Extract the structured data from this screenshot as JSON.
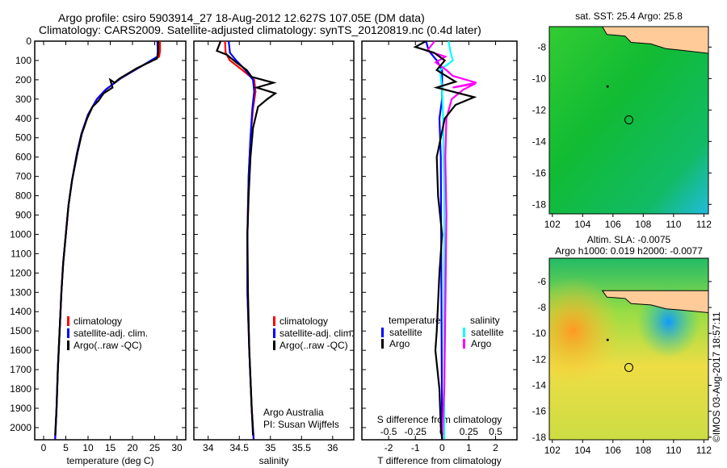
{
  "title_line1": "Argo profile: csiro 5903914_27 18-Aug-2012 12.627S 107.05E (DM data)",
  "title_line2": "Climatology: CARS2009. Satellite-adjusted climatology: synTS_20120819.nc (0.4d later)",
  "side_label": "©IMOS 03-Aug-2017 18:57:11",
  "colors": {
    "climatology": "#ff0000",
    "satellite": "#0000ff",
    "argo": "#000000",
    "sal_satellite": "#00ffff",
    "sal_argo": "#ff00ff"
  },
  "chart_data": [
    {
      "type": "line",
      "id": "temp",
      "xlabel": "temperature (deg C)",
      "ylabel": "",
      "xlim": [
        -2,
        32
      ],
      "ylim": [
        2063,
        0
      ],
      "xticks": [
        0,
        5,
        10,
        15,
        20,
        25,
        30
      ],
      "yticks": [
        0,
        100,
        200,
        300,
        400,
        500,
        600,
        700,
        800,
        900,
        1000,
        1100,
        1200,
        1300,
        1400,
        1500,
        1600,
        1700,
        1800,
        1900,
        2000
      ],
      "legend": [
        "climatology",
        "satellite-adj. clim.",
        "Argo(..raw -QC)"
      ],
      "series": [
        {
          "name": "climatology",
          "color": "#ff0000",
          "points": [
            [
              26.2,
              0
            ],
            [
              26.2,
              50
            ],
            [
              26,
              80
            ],
            [
              22,
              130
            ],
            [
              17.5,
              190
            ],
            [
              14,
              250
            ],
            [
              12,
              300
            ],
            [
              10,
              380
            ],
            [
              8.5,
              480
            ],
            [
              7.5,
              580
            ],
            [
              6.4,
              720
            ],
            [
              5.6,
              850
            ],
            [
              5,
              1000
            ],
            [
              4.4,
              1150
            ],
            [
              4,
              1300
            ],
            [
              3.6,
              1500
            ],
            [
              3.2,
              1700
            ],
            [
              2.9,
              1900
            ],
            [
              2.6,
              2060
            ]
          ]
        },
        {
          "name": "satellite-adj. clim.",
          "color": "#0000ff",
          "points": [
            [
              25.6,
              0
            ],
            [
              25.7,
              50
            ],
            [
              25.6,
              80
            ],
            [
              22,
              130
            ],
            [
              17.5,
              190
            ],
            [
              14,
              250
            ],
            [
              12,
              300
            ],
            [
              10,
              380
            ],
            [
              8.5,
              480
            ],
            [
              7.5,
              580
            ],
            [
              6.4,
              720
            ],
            [
              5.6,
              850
            ],
            [
              5,
              1000
            ],
            [
              4.4,
              1150
            ],
            [
              4,
              1300
            ],
            [
              3.6,
              1500
            ],
            [
              3.2,
              1700
            ],
            [
              2.9,
              1900
            ],
            [
              2.6,
              2060
            ]
          ]
        },
        {
          "name": "Argo(..raw -QC)",
          "color": "#000000",
          "points": [
            [
              25.8,
              0
            ],
            [
              25.8,
              60
            ],
            [
              25.5,
              90
            ],
            [
              21,
              140
            ],
            [
              17,
              195
            ],
            [
              16,
              215
            ],
            [
              15,
              200
            ],
            [
              15.5,
              240
            ],
            [
              13.5,
              270
            ],
            [
              12.3,
              310
            ],
            [
              11,
              340
            ],
            [
              9.8,
              400
            ],
            [
              8.6,
              480
            ],
            [
              7.6,
              580
            ],
            [
              6.4,
              720
            ],
            [
              5.6,
              850
            ],
            [
              5,
              1000
            ],
            [
              4.4,
              1150
            ],
            [
              4,
              1300
            ],
            [
              3.6,
              1500
            ],
            [
              3.2,
              1700
            ],
            [
              2.9,
              1900
            ],
            [
              2.6,
              2040
            ]
          ]
        }
      ]
    },
    {
      "type": "line",
      "id": "sal",
      "xlabel": "salinity",
      "xlim": [
        33.77,
        36.34
      ],
      "ylim": [
        2063,
        0
      ],
      "xticks": [
        34,
        34.5,
        35,
        35.5,
        36
      ],
      "xticklabels": [
        "34",
        "34.5",
        "35",
        "35.5",
        "36"
      ],
      "legend": [
        "climatology",
        "satellite-adj. clim.",
        "Argo(..raw -QC)"
      ],
      "annotation": [
        "Argo Australia",
        "PI: Susan Wijffels"
      ],
      "series": [
        {
          "name": "climatology",
          "color": "#ff0000",
          "points": [
            [
              34.27,
              0
            ],
            [
              34.28,
              60
            ],
            [
              34.35,
              100
            ],
            [
              34.55,
              150
            ],
            [
              34.74,
              200
            ],
            [
              34.76,
              260
            ],
            [
              34.72,
              350
            ],
            [
              34.68,
              500
            ],
            [
              34.65,
              700
            ],
            [
              34.63,
              1000
            ],
            [
              34.63,
              1300
            ],
            [
              34.66,
              1600
            ],
            [
              34.7,
              1900
            ],
            [
              34.73,
              2060
            ]
          ]
        },
        {
          "name": "satellite-adj. clim.",
          "color": "#0000ff",
          "points": [
            [
              34.33,
              0
            ],
            [
              34.35,
              60
            ],
            [
              34.45,
              100
            ],
            [
              34.6,
              150
            ],
            [
              34.72,
              200
            ],
            [
              34.74,
              260
            ],
            [
              34.71,
              350
            ],
            [
              34.68,
              500
            ],
            [
              34.65,
              700
            ],
            [
              34.63,
              1000
            ],
            [
              34.63,
              1300
            ],
            [
              34.66,
              1600
            ],
            [
              34.7,
              1900
            ],
            [
              34.73,
              2060
            ]
          ]
        },
        {
          "name": "Argo(..raw -QC)",
          "color": "#000000",
          "points": [
            [
              34.2,
              0
            ],
            [
              34.14,
              50
            ],
            [
              34.3,
              70
            ],
            [
              34.45,
              110
            ],
            [
              34.62,
              150
            ],
            [
              34.7,
              185
            ],
            [
              35.05,
              215
            ],
            [
              34.78,
              240
            ],
            [
              35.08,
              270
            ],
            [
              34.95,
              300
            ],
            [
              34.8,
              340
            ],
            [
              34.72,
              450
            ],
            [
              34.68,
              600
            ],
            [
              34.65,
              800
            ],
            [
              34.63,
              1000
            ],
            [
              34.64,
              1300
            ],
            [
              34.66,
              1600
            ],
            [
              34.7,
              1900
            ],
            [
              34.72,
              2040
            ]
          ]
        }
      ]
    },
    {
      "type": "line",
      "id": "diff",
      "xlabel": "T difference from climatology",
      "xlabel2": "S difference from climatology",
      "xlim": [
        -3,
        2.8
      ],
      "xlim2": [
        -0.75,
        0.7
      ],
      "ylim": [
        2063,
        0
      ],
      "xticks": [
        -2,
        -1,
        0,
        1,
        2
      ],
      "xticks2": [
        -0.5,
        -0.25,
        0,
        0.25,
        0.5
      ],
      "xticklabels2": [
        "-0.5",
        "-0.25",
        "0",
        "0.25",
        "0.5"
      ],
      "legend": {
        "temperature": "temperature",
        "salinity": "salinity",
        "t_sat": "satellite",
        "t_argo": "Argo",
        "s_sat": "satellite",
        "s_argo": "Argo"
      },
      "series": [
        {
          "name": "T satellite",
          "color": "#0000ff",
          "axis": "T",
          "points": [
            [
              -0.6,
              0
            ],
            [
              -0.5,
              50
            ],
            [
              -0.2,
              100
            ],
            [
              0,
              150
            ],
            [
              0,
              300
            ],
            [
              -0.1,
              400
            ],
            [
              -0.05,
              600
            ],
            [
              0,
              2060
            ]
          ]
        },
        {
          "name": "S satellite",
          "color": "#00ffff",
          "axis": "S",
          "points": [
            [
              0.06,
              0
            ],
            [
              0.08,
              60
            ],
            [
              0.1,
              100
            ],
            [
              -0.02,
              150
            ],
            [
              0.0,
              250
            ],
            [
              0.01,
              400
            ],
            [
              0.02,
              800
            ],
            [
              0.02,
              1400
            ],
            [
              0.02,
              2060
            ]
          ]
        },
        {
          "name": "S Argo",
          "color": "#ff00ff",
          "axis": "S",
          "points": [
            [
              -0.07,
              0
            ],
            [
              -0.14,
              50
            ],
            [
              0.03,
              80
            ],
            [
              -0.06,
              110
            ],
            [
              0.04,
              150
            ],
            [
              0.1,
              180
            ],
            [
              0.32,
              215
            ],
            [
              0.1,
              240
            ],
            [
              0.31,
              220
            ],
            [
              0.2,
              250
            ],
            [
              0.09,
              300
            ],
            [
              0.04,
              400
            ],
            [
              0.03,
              600
            ],
            [
              0.04,
              900
            ],
            [
              0.03,
              1400
            ],
            [
              0.02,
              1800
            ],
            [
              0.0,
              2060
            ]
          ]
        },
        {
          "name": "T Argo",
          "color": "#000000",
          "axis": "T",
          "points": [
            [
              -0.6,
              0
            ],
            [
              -1,
              30
            ],
            [
              -0.3,
              60
            ],
            [
              0.1,
              100
            ],
            [
              -0.2,
              150
            ],
            [
              0.5,
              210
            ],
            [
              -0.2,
              240
            ],
            [
              1.2,
              290
            ],
            [
              0.5,
              330
            ],
            [
              0.1,
              400
            ],
            [
              -0.2,
              600
            ],
            [
              -0.15,
              800
            ],
            [
              0.0,
              1000
            ],
            [
              -0.1,
              1200
            ],
            [
              -0.2,
              1500
            ],
            [
              -0.25,
              1600
            ],
            [
              -0.1,
              1800
            ],
            [
              -0.05,
              2000
            ],
            [
              0.0,
              2060
            ]
          ]
        }
      ]
    },
    {
      "type": "heatmap",
      "id": "sst_map",
      "title": "sat. SST: 25.4 Argo: 25.8",
      "xlim": [
        101.8,
        112.3
      ],
      "ylim": [
        -18.6,
        -6.7
      ],
      "xticks": [
        102,
        104,
        106,
        108,
        110,
        112
      ],
      "yticks": [
        -8,
        -10,
        -12,
        -14,
        -16,
        -18
      ],
      "marker": [
        107.05,
        -12.627
      ]
    },
    {
      "type": "heatmap",
      "id": "sla_map",
      "title": "Altim. SLA: -0.0075",
      "subtitle": "Argo h1000: 0.019 h2000: -0.0077",
      "xlim": [
        101.8,
        112.3
      ],
      "ylim": [
        -18.2,
        -4.2
      ],
      "xticks": [
        102,
        104,
        106,
        108,
        110,
        112
      ],
      "yticks": [
        -6,
        -8,
        -10,
        -12,
        -14,
        -16,
        -18
      ],
      "marker": [
        107.05,
        -12.627
      ]
    }
  ]
}
